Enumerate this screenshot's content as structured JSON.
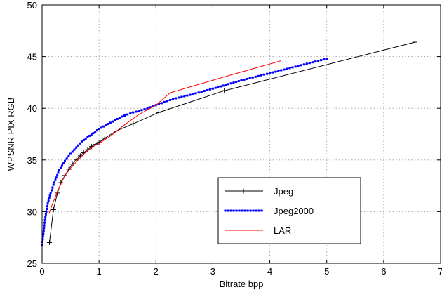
{
  "chart_data": {
    "type": "line",
    "title": "",
    "xlabel": "Bitrate bpp",
    "ylabel": "WPSNR PIX RGB",
    "xlim": [
      0,
      7
    ],
    "ylim": [
      25,
      50
    ],
    "xticks": [
      0,
      1,
      2,
      3,
      4,
      5,
      6,
      7
    ],
    "yticks": [
      25,
      30,
      35,
      40,
      45,
      50
    ],
    "grid": "dotted",
    "legend_position": "lower-right",
    "series": [
      {
        "name": "Jpeg",
        "color": "#000000",
        "marker": "plus",
        "x": [
          0.13,
          0.2,
          0.27,
          0.33,
          0.4,
          0.47,
          0.53,
          0.6,
          0.67,
          0.73,
          0.8,
          0.87,
          0.93,
          1.0,
          1.1,
          1.3,
          1.6,
          2.05,
          3.2,
          6.55
        ],
        "y": [
          27.0,
          30.2,
          31.8,
          32.8,
          33.5,
          34.1,
          34.6,
          35.0,
          35.4,
          35.7,
          36.0,
          36.3,
          36.5,
          36.7,
          37.1,
          37.8,
          38.5,
          39.6,
          41.7,
          46.4
        ]
      },
      {
        "name": "Jpeg2000",
        "color": "#0000ff",
        "marker": "point",
        "x": [
          0.0,
          0.05,
          0.1,
          0.15,
          0.2,
          0.3,
          0.4,
          0.5,
          0.6,
          0.7,
          0.8,
          0.9,
          1.0,
          1.2,
          1.4,
          1.6,
          1.8,
          2.0,
          2.3,
          2.6,
          3.0,
          3.5,
          4.0,
          4.5,
          5.0
        ],
        "y": [
          26.8,
          29.2,
          30.8,
          31.8,
          32.6,
          34.0,
          34.9,
          35.6,
          36.2,
          36.8,
          37.2,
          37.6,
          38.0,
          38.6,
          39.2,
          39.6,
          39.9,
          40.3,
          40.9,
          41.3,
          41.9,
          42.7,
          43.4,
          44.1,
          44.8
        ]
      },
      {
        "name": "LAR",
        "color": "#ff0000",
        "marker": "none",
        "x": [
          0.12,
          0.2,
          0.3,
          0.4,
          0.5,
          0.6,
          0.7,
          0.8,
          0.9,
          1.0,
          1.2,
          1.4,
          1.7,
          2.0,
          2.25,
          3.3,
          4.2
        ],
        "y": [
          29.8,
          31.0,
          32.3,
          33.5,
          34.2,
          34.8,
          35.4,
          35.9,
          36.3,
          36.6,
          37.3,
          38.2,
          39.4,
          40.3,
          41.5,
          43.2,
          44.6
        ]
      }
    ]
  }
}
